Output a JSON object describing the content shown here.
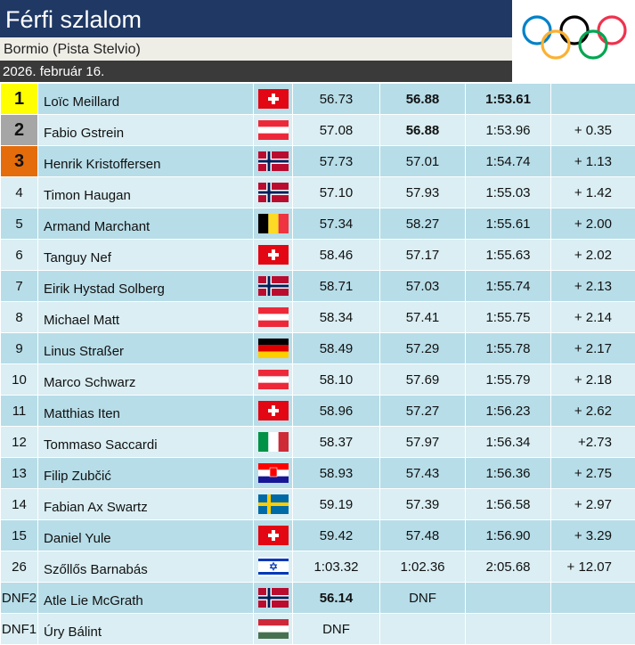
{
  "header": {
    "title": "Férfi szlalom",
    "venue": "Bormio (Pista Stelvio)",
    "date": "2026. február 16."
  },
  "logo": {
    "icon": "olympic-rings-icon",
    "colors": [
      "#0081c8",
      "#fcb131",
      "#000000",
      "#00a651",
      "#ee334e"
    ]
  },
  "results": [
    {
      "rank": "1",
      "medal": "gold",
      "name": "Loïc Meillard",
      "flag": "sui",
      "run1": "56.73",
      "run2": "56.88",
      "total": "1:53.61",
      "diff": "",
      "bold": [
        "run2",
        "total"
      ]
    },
    {
      "rank": "2",
      "medal": "silver",
      "name": "Fabio Gstrein",
      "flag": "aut",
      "run1": "57.08",
      "run2": "56.88",
      "total": "1:53.96",
      "diff": "+ 0.35",
      "bold": [
        "run2"
      ]
    },
    {
      "rank": "3",
      "medal": "bronze",
      "name": "Henrik Kristoffersen",
      "flag": "nor",
      "run1": "57.73",
      "run2": "57.01",
      "total": "1:54.74",
      "diff": "+ 1.13",
      "bold": []
    },
    {
      "rank": "4",
      "medal": "",
      "name": "Timon Haugan",
      "flag": "nor",
      "run1": "57.10",
      "run2": "57.93",
      "total": "1:55.03",
      "diff": "+ 1.42",
      "bold": []
    },
    {
      "rank": "5",
      "medal": "",
      "name": "Armand Marchant",
      "flag": "bel",
      "run1": "57.34",
      "run2": "58.27",
      "total": "1:55.61",
      "diff": "+ 2.00",
      "bold": []
    },
    {
      "rank": "6",
      "medal": "",
      "name": "Tanguy Nef",
      "flag": "sui",
      "run1": "58.46",
      "run2": "57.17",
      "total": "1:55.63",
      "diff": "+ 2.02",
      "bold": []
    },
    {
      "rank": "7",
      "medal": "",
      "name": "Eirik Hystad Solberg",
      "flag": "nor",
      "run1": "58.71",
      "run2": "57.03",
      "total": "1:55.74",
      "diff": "+ 2.13",
      "bold": []
    },
    {
      "rank": "8",
      "medal": "",
      "name": "Michael Matt",
      "flag": "aut",
      "run1": "58.34",
      "run2": "57.41",
      "total": "1:55.75",
      "diff": "+ 2.14",
      "bold": []
    },
    {
      "rank": "9",
      "medal": "",
      "name": "Linus Straßer",
      "flag": "ger",
      "run1": "58.49",
      "run2": "57.29",
      "total": "1:55.78",
      "diff": "+ 2.17",
      "bold": []
    },
    {
      "rank": "10",
      "medal": "",
      "name": "Marco Schwarz",
      "flag": "aut",
      "run1": "58.10",
      "run2": "57.69",
      "total": "1:55.79",
      "diff": "+ 2.18",
      "bold": []
    },
    {
      "rank": "11",
      "medal": "",
      "name": "Matthias Iten",
      "flag": "sui",
      "run1": "58.96",
      "run2": "57.27",
      "total": "1:56.23",
      "diff": "+ 2.62",
      "bold": []
    },
    {
      "rank": "12",
      "medal": "",
      "name": "Tommaso Saccardi",
      "flag": "ita",
      "run1": "58.37",
      "run2": "57.97",
      "total": "1:56.34",
      "diff": "+2.73",
      "bold": []
    },
    {
      "rank": "13",
      "medal": "",
      "name": "Filip Zubčić",
      "flag": "cro",
      "run1": "58.93",
      "run2": "57.43",
      "total": "1:56.36",
      "diff": "+ 2.75",
      "bold": []
    },
    {
      "rank": "14",
      "medal": "",
      "name": "Fabian Ax Swartz",
      "flag": "swe",
      "run1": "59.19",
      "run2": "57.39",
      "total": "1:56.58",
      "diff": "+ 2.97",
      "bold": []
    },
    {
      "rank": "15",
      "medal": "",
      "name": "Daniel Yule",
      "flag": "sui",
      "run1": "59.42",
      "run2": "57.48",
      "total": "1:56.90",
      "diff": "+ 3.29",
      "bold": []
    },
    {
      "rank": "26",
      "medal": "",
      "name": "Szőllős Barnabás",
      "flag": "isr",
      "run1": "1:03.32",
      "run2": "1:02.36",
      "total": "2:05.68",
      "diff": "+ 12.07",
      "bold": []
    },
    {
      "rank": "DNF2",
      "medal": "",
      "name": "Atle Lie McGrath",
      "flag": "nor",
      "run1": "56.14",
      "run2": "DNF",
      "total": "",
      "diff": "",
      "bold": [
        "run1"
      ]
    },
    {
      "rank": "DNF1",
      "medal": "",
      "name": "Úry Bálint",
      "flag": "hun",
      "run1": "DNF",
      "run2": "",
      "total": "",
      "diff": "",
      "bold": []
    }
  ]
}
